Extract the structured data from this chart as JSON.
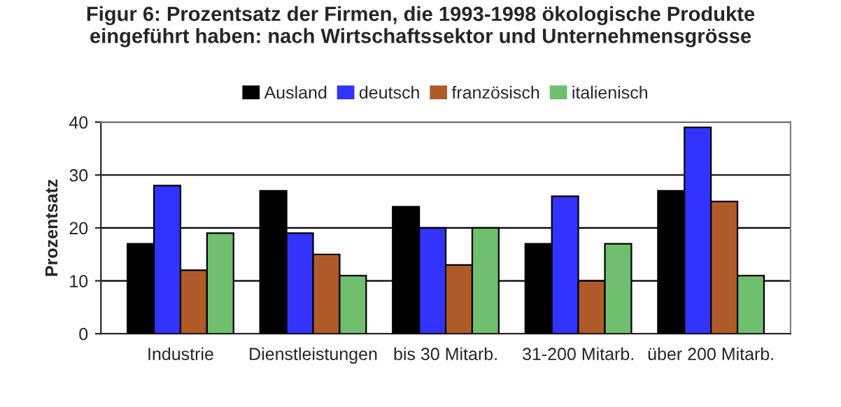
{
  "chart_data": {
    "type": "bar",
    "title": "Figur 6: Prozentsatz der Firmen, die 1993-1998 ökologische Produkte\neingeführt haben: nach Wirtschaftssektor und Unternehmensgrösse",
    "ylabel": "Prozentsatz",
    "categories": [
      "Industrie",
      "Dienstleistungen",
      "bis 30 Mitarb.",
      "31-200 Mitarb.",
      "über 200 Mitarb."
    ],
    "series": [
      {
        "name": "Ausland",
        "color": "#000000",
        "values": [
          17,
          27,
          24,
          17,
          27
        ]
      },
      {
        "name": "deutsch",
        "color": "#3333ff",
        "values": [
          28,
          19,
          20,
          26,
          39
        ]
      },
      {
        "name": "französisch",
        "color": "#b05a2a",
        "values": [
          12,
          15,
          13,
          10,
          25
        ]
      },
      {
        "name": "italienisch",
        "color": "#6fbf6f",
        "values": [
          19,
          11,
          20,
          17,
          11
        ]
      }
    ],
    "ylim": [
      0,
      40
    ],
    "yticks": [
      0,
      10,
      20,
      30,
      40
    ],
    "grid": "y",
    "legend": "top"
  }
}
